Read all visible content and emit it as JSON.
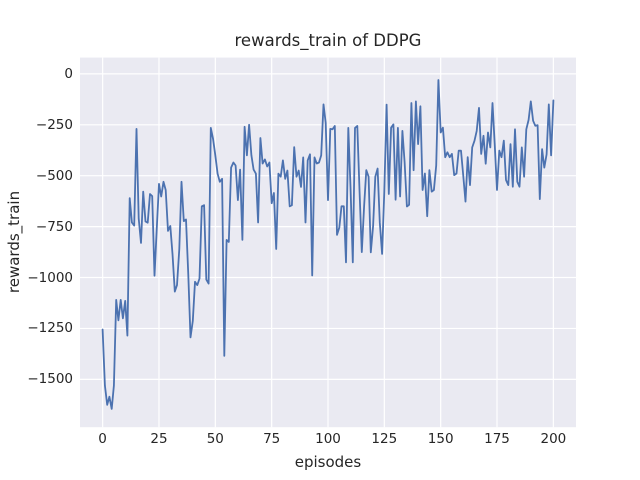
{
  "colors": {
    "figure_bg": "#ffffff",
    "axes_bg": "#eaeaf2",
    "grid": "#ffffff",
    "line": "#4c72b0",
    "text": "#262626"
  },
  "chart_data": {
    "type": "line",
    "title": "rewards_train of DDPG",
    "xlabel": "episodes",
    "ylabel": "rewards_train",
    "legend_position": "none",
    "grid": true,
    "xticks": [
      0,
      25,
      50,
      75,
      100,
      125,
      150,
      175,
      200
    ],
    "yticks": [
      0,
      -250,
      -500,
      -750,
      -1000,
      -1250,
      -1500
    ],
    "xlim": [
      -10.05,
      210.05
    ],
    "ylim": [
      -1735,
      80
    ],
    "x_start": 0,
    "x_step": 1,
    "values": [
      -1255,
      -1530,
      -1625,
      -1585,
      -1645,
      -1530,
      -1110,
      -1210,
      -1110,
      -1200,
      -1115,
      -1285,
      -610,
      -730,
      -745,
      -270,
      -710,
      -830,
      -578,
      -725,
      -731,
      -590,
      -600,
      -991,
      -766,
      -540,
      -602,
      -530,
      -570,
      -771,
      -747,
      -884,
      -1069,
      -1037,
      -860,
      -530,
      -723,
      -715,
      -988,
      -1294,
      -1213,
      -1021,
      -1037,
      -1005,
      -650,
      -645,
      -1010,
      -1030,
      -265,
      -320,
      -400,
      -490,
      -530,
      -515,
      -1385,
      -815,
      -825,
      -460,
      -435,
      -450,
      -620,
      -470,
      -815,
      -260,
      -400,
      -250,
      -400,
      -470,
      -490,
      -730,
      -315,
      -440,
      -420,
      -455,
      -435,
      -635,
      -585,
      -860,
      -490,
      -505,
      -425,
      -515,
      -475,
      -650,
      -645,
      -360,
      -505,
      -475,
      -555,
      -410,
      -730,
      -425,
      -395,
      -990,
      -410,
      -440,
      -435,
      -400,
      -150,
      -240,
      -620,
      -270,
      -272,
      -256,
      -790,
      -755,
      -650,
      -650,
      -925,
      -265,
      -555,
      -925,
      -265,
      -256,
      -570,
      -875,
      -650,
      -473,
      -505,
      -876,
      -747,
      -505,
      -465,
      -731,
      -884,
      -578,
      -151,
      -590,
      -264,
      -248,
      -618,
      -265,
      -602,
      -280,
      -433,
      -651,
      -643,
      -143,
      -473,
      -135,
      -345,
      -159,
      -570,
      -489,
      -699,
      -473,
      -578,
      -570,
      -450,
      -30,
      -288,
      -264,
      -409,
      -385,
      -409,
      -393,
      -497,
      -489,
      -377,
      -377,
      -497,
      -627,
      -409,
      -546,
      -361,
      -328,
      -280,
      -167,
      -393,
      -304,
      -441,
      -288,
      -361,
      -143,
      -353,
      -570,
      -377,
      -409,
      -328,
      -521,
      -546,
      -345,
      -554,
      -272,
      -530,
      -554,
      -361,
      -505,
      -272,
      -226,
      -135,
      -230,
      -255,
      -252,
      -615,
      -370,
      -460,
      -395,
      -150,
      -400,
      -130
    ]
  }
}
